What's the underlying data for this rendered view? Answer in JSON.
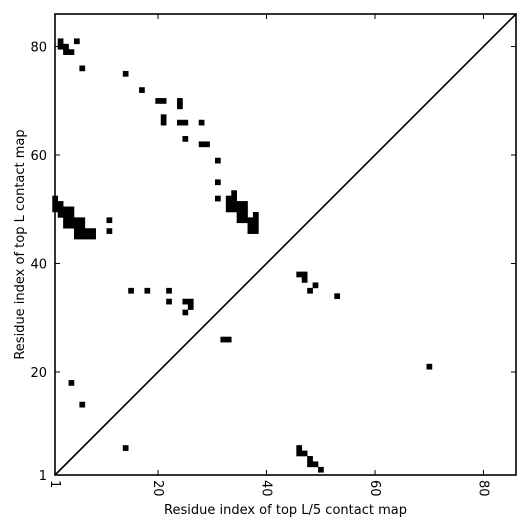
{
  "chart_data": {
    "type": "heatmap",
    "title": "",
    "xlabel": "Residue index of top L/5 contact map",
    "ylabel": "Residue index of top L contact map",
    "xlim": [
      1,
      86
    ],
    "ylim": [
      1,
      86
    ],
    "xticks": [
      1,
      20,
      40,
      60,
      80
    ],
    "yticks": [
      1,
      20,
      40,
      60,
      80
    ],
    "diagonal": true,
    "grid": false,
    "cell_color": "#000000",
    "upper_left_contacts": [
      [
        1,
        52
      ],
      [
        1,
        51
      ],
      [
        1,
        50
      ],
      [
        2,
        51
      ],
      [
        2,
        50
      ],
      [
        2,
        49
      ],
      [
        3,
        50
      ],
      [
        3,
        49
      ],
      [
        3,
        48
      ],
      [
        3,
        47
      ],
      [
        4,
        50
      ],
      [
        4,
        49
      ],
      [
        4,
        48
      ],
      [
        4,
        47
      ],
      [
        5,
        48
      ],
      [
        5,
        47
      ],
      [
        5,
        46
      ],
      [
        5,
        45
      ],
      [
        6,
        48
      ],
      [
        6,
        47
      ],
      [
        6,
        46
      ],
      [
        6,
        45
      ],
      [
        7,
        46
      ],
      [
        7,
        45
      ],
      [
        8,
        46
      ],
      [
        8,
        45
      ],
      [
        11,
        48
      ],
      [
        11,
        46
      ],
      [
        2,
        81
      ],
      [
        2,
        80
      ],
      [
        3,
        80
      ],
      [
        3,
        79
      ],
      [
        4,
        79
      ],
      [
        5,
        81
      ],
      [
        6,
        76
      ],
      [
        14,
        75
      ],
      [
        17,
        72
      ],
      [
        20,
        70
      ],
      [
        21,
        70
      ],
      [
        21,
        67
      ],
      [
        21,
        66
      ],
      [
        24,
        70
      ],
      [
        24,
        69
      ],
      [
        24,
        66
      ],
      [
        25,
        66
      ],
      [
        25,
        63
      ],
      [
        28,
        66
      ],
      [
        28,
        62
      ],
      [
        29,
        62
      ],
      [
        31,
        59
      ],
      [
        31,
        55
      ],
      [
        31,
        52
      ],
      [
        33,
        52
      ],
      [
        33,
        51
      ],
      [
        33,
        50
      ],
      [
        34,
        53
      ],
      [
        34,
        52
      ],
      [
        34,
        51
      ],
      [
        34,
        50
      ],
      [
        35,
        51
      ],
      [
        35,
        50
      ],
      [
        35,
        49
      ],
      [
        35,
        48
      ],
      [
        36,
        51
      ],
      [
        36,
        50
      ],
      [
        36,
        49
      ],
      [
        36,
        48
      ],
      [
        37,
        48
      ],
      [
        37,
        47
      ],
      [
        37,
        46
      ],
      [
        38,
        49
      ],
      [
        38,
        48
      ],
      [
        38,
        47
      ],
      [
        38,
        46
      ]
    ],
    "lower_right_contacts": [
      [
        46,
        38
      ],
      [
        47,
        38
      ],
      [
        47,
        37
      ],
      [
        48,
        35
      ],
      [
        49,
        36
      ],
      [
        53,
        34
      ],
      [
        15,
        35
      ],
      [
        18,
        35
      ],
      [
        22,
        35
      ],
      [
        22,
        33
      ],
      [
        25,
        33
      ],
      [
        25,
        31
      ],
      [
        26,
        33
      ],
      [
        26,
        32
      ],
      [
        32,
        26
      ],
      [
        33,
        26
      ],
      [
        4,
        18
      ],
      [
        6,
        14
      ],
      [
        70,
        21
      ],
      [
        14,
        6
      ],
      [
        46,
        6
      ],
      [
        46,
        5
      ],
      [
        47,
        5
      ],
      [
        48,
        4
      ],
      [
        48,
        3
      ],
      [
        49,
        3
      ],
      [
        50,
        2
      ]
    ]
  }
}
